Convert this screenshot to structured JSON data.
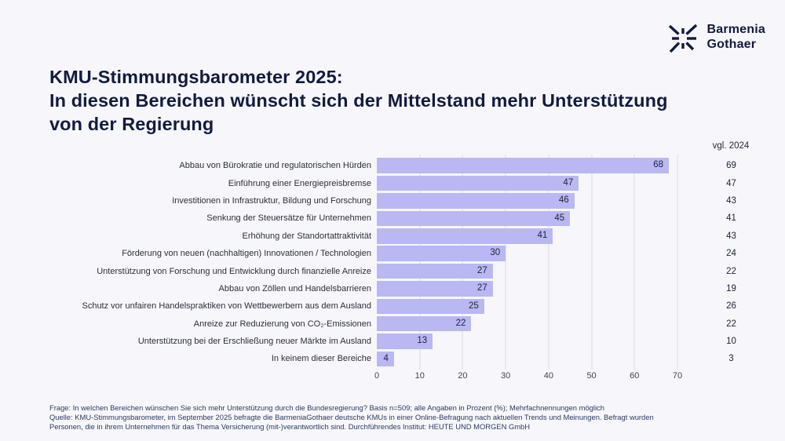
{
  "logo": {
    "line1": "Barmenia",
    "line2": "Gothaer",
    "brand_color": "#121b3f"
  },
  "title": "KMU-Stimmungsbarometer 2025:\nIn diesen Bereichen wünscht sich der Mittelstand mehr Unterstützung\nvon der Regierung",
  "chart_data": {
    "type": "bar",
    "orientation": "horizontal",
    "title": "KMU-Stimmungsbarometer 2025: In diesen Bereichen wünscht sich der Mittelstand mehr Unterstützung von der Regierung",
    "compare_header": "vgl. 2024",
    "categories": [
      "Abbau von Bürokratie und regulatorischen Hürden",
      "Einführung einer Energiepreisbremse",
      "Investitionen in Infrastruktur, Bildung und Forschung",
      "Senkung der Steuersätze für Unternehmen",
      "Erhöhung der Standortattraktivität",
      "Förderung von neuen (nachhaltigen) Innovationen / Technologien",
      "Unterstützung von Forschung und Entwicklung durch finanzielle Anreize",
      "Abbau von Zöllen und Handelsbarrieren",
      "Schutz vor unfairen Handelspraktiken von Wettbewerbern aus dem Ausland",
      "Anreize zur Reduzierung von CO₂-Emissionen",
      "Unterstützung bei der Erschließung neuer Märkte im Ausland",
      "In keinem dieser Bereiche"
    ],
    "series": [
      {
        "name": "2025",
        "values": [
          68,
          47,
          46,
          45,
          41,
          30,
          27,
          27,
          25,
          22,
          13,
          4
        ]
      },
      {
        "name": "vgl. 2024",
        "values": [
          69,
          47,
          43,
          41,
          43,
          24,
          22,
          19,
          26,
          22,
          10,
          3
        ]
      }
    ],
    "xlim": [
      0,
      70
    ],
    "x_ticks": [
      0,
      10,
      20,
      30,
      40,
      50,
      60,
      70
    ],
    "grid": true,
    "legend_position": "none",
    "value_labels": "inside-end",
    "bar_color": "#b9b8f3",
    "units": "Prozent (%)"
  },
  "footer": {
    "line1": "Frage: In welchen Bereichen wünschen Sie sich mehr Unterstützung durch die Bundesregierung? Basis n=509;  alle Angaben in Prozent (%); Mehrfachnennungen möglich",
    "line2": "Quelle: KMU-Stimmungsbarometer, im September 2025 befragte die BarmeniaGothaer deutsche KMUs in einer Online-Befragung nach aktuellen Trends und Meinungen. Befragt wurden",
    "line3": "Personen, die in ihrem Unternehmen für das Thema Versicherung (mit-)verantwortlich sind. Durchführendes Institut: HEUTE UND MORGEN GmbH"
  }
}
